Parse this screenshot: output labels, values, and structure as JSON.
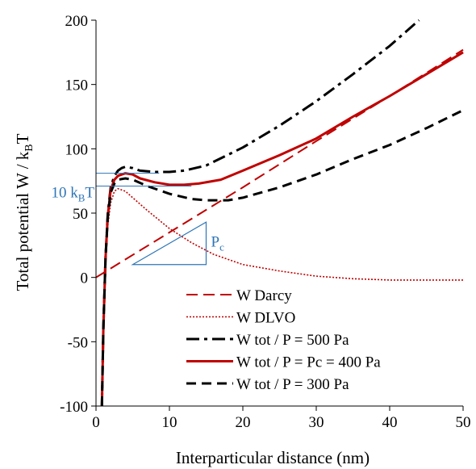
{
  "colors": {
    "darcy": "#c00000",
    "dlvo": "#c00000",
    "p500": "#000000",
    "pc400": "#c00000",
    "p300": "#000000",
    "annotation": "#2e75b6",
    "axis": "#000000"
  },
  "chart_data": {
    "type": "line",
    "xlabel": "Interparticular distance  (nm)",
    "ylabel_main": "Total potential W / k",
    "ylabel_sub": "B",
    "ylabel_tail": "T",
    "xlim": [
      0,
      50
    ],
    "ylim": [
      -100,
      200
    ],
    "x_ticks": [
      0,
      10,
      20,
      30,
      40,
      50
    ],
    "y_ticks": [
      -100,
      -50,
      0,
      50,
      100,
      150,
      200
    ],
    "grid": false,
    "legend_position": "bottom-right",
    "series": [
      {
        "key": "darcy",
        "name": "W Darcy",
        "style": "dashed",
        "points": [
          [
            0,
            0
          ],
          [
            10,
            35
          ],
          [
            20,
            70
          ],
          [
            30,
            106
          ],
          [
            40,
            141
          ],
          [
            50,
            177
          ]
        ]
      },
      {
        "key": "dlvo",
        "name": "W DLVO",
        "style": "dotted",
        "points": [
          [
            0.8,
            -100
          ],
          [
            1.0,
            -40
          ],
          [
            1.3,
            10
          ],
          [
            1.6,
            40
          ],
          [
            2.0,
            58
          ],
          [
            2.5,
            67
          ],
          [
            3.0,
            69
          ],
          [
            4.0,
            67
          ],
          [
            5.0,
            62
          ],
          [
            7.0,
            52
          ],
          [
            10.0,
            38
          ],
          [
            13.0,
            27
          ],
          [
            16.0,
            18
          ],
          [
            20.0,
            10
          ],
          [
            25.0,
            5
          ],
          [
            30.0,
            1
          ],
          [
            35.0,
            -1
          ],
          [
            40.0,
            -2
          ],
          [
            45.0,
            -2
          ],
          [
            50.0,
            -2
          ]
        ]
      },
      {
        "key": "p500",
        "name": "W tot / P = 500 Pa",
        "style": "dash-dot",
        "points": [
          [
            0.8,
            -100
          ],
          [
            1.0,
            -40
          ],
          [
            1.3,
            15
          ],
          [
            1.6,
            50
          ],
          [
            2.0,
            70
          ],
          [
            2.5,
            79
          ],
          [
            3.0,
            83
          ],
          [
            3.5,
            85
          ],
          [
            4.0,
            86
          ],
          [
            5.0,
            85
          ],
          [
            6.0,
            83
          ],
          [
            8.0,
            82
          ],
          [
            10.0,
            82
          ],
          [
            12.0,
            83
          ],
          [
            15.0,
            87
          ],
          [
            20.0,
            101
          ],
          [
            25.0,
            118
          ],
          [
            30.0,
            137
          ],
          [
            35.0,
            158
          ],
          [
            40.0,
            180
          ],
          [
            44.0,
            200
          ]
        ]
      },
      {
        "key": "pc400",
        "name": "W tot / P = Pc = 400 Pa",
        "style": "solid",
        "points": [
          [
            0.8,
            -100
          ],
          [
            1.0,
            -40
          ],
          [
            1.3,
            15
          ],
          [
            1.6,
            48
          ],
          [
            2.0,
            68
          ],
          [
            2.5,
            76
          ],
          [
            3.0,
            79
          ],
          [
            4.0,
            81
          ],
          [
            5.0,
            80
          ],
          [
            6.0,
            77
          ],
          [
            8.0,
            74
          ],
          [
            10.0,
            72
          ],
          [
            12.0,
            72
          ],
          [
            14.0,
            73
          ],
          [
            17.0,
            76
          ],
          [
            20.0,
            83
          ],
          [
            25.0,
            95
          ],
          [
            30.0,
            108
          ],
          [
            35.0,
            125
          ],
          [
            40.0,
            141
          ],
          [
            45.0,
            158
          ],
          [
            50.0,
            175
          ]
        ]
      },
      {
        "key": "p300",
        "name": "W tot / P = 300 Pa",
        "style": "dashed-bold",
        "points": [
          [
            0.8,
            -100
          ],
          [
            1.0,
            -40
          ],
          [
            1.3,
            15
          ],
          [
            1.6,
            47
          ],
          [
            2.0,
            66
          ],
          [
            2.5,
            73
          ],
          [
            3.0,
            76
          ],
          [
            4.0,
            77
          ],
          [
            5.0,
            76
          ],
          [
            7.0,
            71
          ],
          [
            10.0,
            65
          ],
          [
            13.0,
            61
          ],
          [
            15.0,
            60
          ],
          [
            18.0,
            60
          ],
          [
            20.0,
            62
          ],
          [
            25.0,
            70
          ],
          [
            30.0,
            80
          ],
          [
            35.0,
            92
          ],
          [
            40.0,
            103
          ],
          [
            45.0,
            116
          ],
          [
            50.0,
            130
          ]
        ]
      }
    ],
    "annotations": {
      "energy_label": "10 k",
      "energy_label_sub": "B",
      "energy_label_tail": "T",
      "energy_upper": 81,
      "energy_lower": 71,
      "energy_line_x_end": 13,
      "slope_label": "P",
      "slope_label_sub": "c",
      "triangle": {
        "x1": 5,
        "y1": 10,
        "x2": 15,
        "y2": 43
      }
    }
  }
}
